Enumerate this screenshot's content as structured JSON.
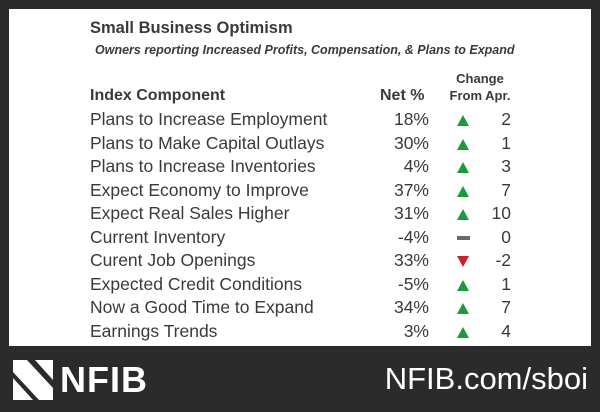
{
  "header": {
    "title": "Small Business Optimism",
    "subtitle": "Owners reporting Increased Profits, Compensation, & Plans to Expand"
  },
  "columns": {
    "component": "Index Component",
    "net": "Net %",
    "change_line1": "Change",
    "change_line2": "From Apr."
  },
  "colors": {
    "up": "#1a9a3a",
    "down": "#c8232c",
    "flat": "#6a6a6a"
  },
  "rows": [
    {
      "label": "Plans to Increase Employment",
      "net": "18%",
      "direction": "up",
      "change": "2"
    },
    {
      "label": "Plans to Make Capital Outlays",
      "net": "30%",
      "direction": "up",
      "change": "1"
    },
    {
      "label": "Plans to Increase Inventories",
      "net": "4%",
      "direction": "up",
      "change": "3"
    },
    {
      "label": "Expect Economy to Improve",
      "net": "37%",
      "direction": "up",
      "change": "7"
    },
    {
      "label": "Expect Real Sales Higher",
      "net": "31%",
      "direction": "up",
      "change": "10"
    },
    {
      "label": "Current Inventory",
      "net": "-4%",
      "direction": "flat",
      "change": "0"
    },
    {
      "label": "Curent Job Openings",
      "net": "33%",
      "direction": "down",
      "change": "-2"
    },
    {
      "label": "Expected Credit Conditions",
      "net": "-5%",
      "direction": "up",
      "change": "1"
    },
    {
      "label": "Now a Good Time to Expand",
      "net": "34%",
      "direction": "up",
      "change": "7"
    },
    {
      "label": "Earnings Trends",
      "net": "3%",
      "direction": "up",
      "change": "4"
    }
  ],
  "footer": {
    "logo_text": "NFIB",
    "logo_icon": "nfib-logo-icon",
    "url": "NFIB.com/sboi"
  }
}
